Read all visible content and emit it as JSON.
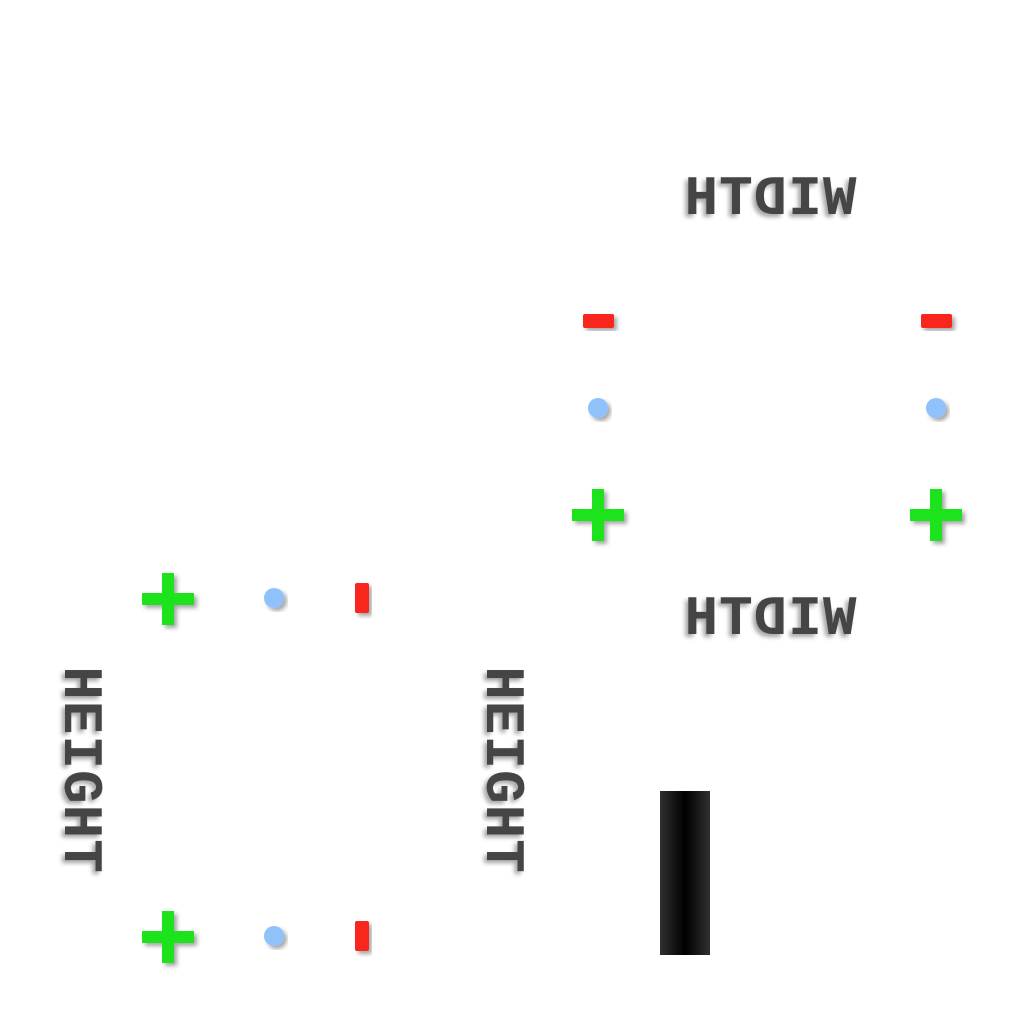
{
  "labels": {
    "width_top": "WIDTH",
    "width_bottom": "WIDTH",
    "height_left": "HEIGHT",
    "height_right": "HEIGHT"
  },
  "icons": {
    "increase": "plus-icon",
    "default": "dot-icon",
    "decrease": "minus-icon",
    "indicator": "bar-icon"
  },
  "colors": {
    "plus": "#1ee31a",
    "minus": "#f8261a",
    "dot": "#8fc1fb",
    "label": "#454545",
    "bar": "#000000",
    "background": "#ffffff"
  }
}
